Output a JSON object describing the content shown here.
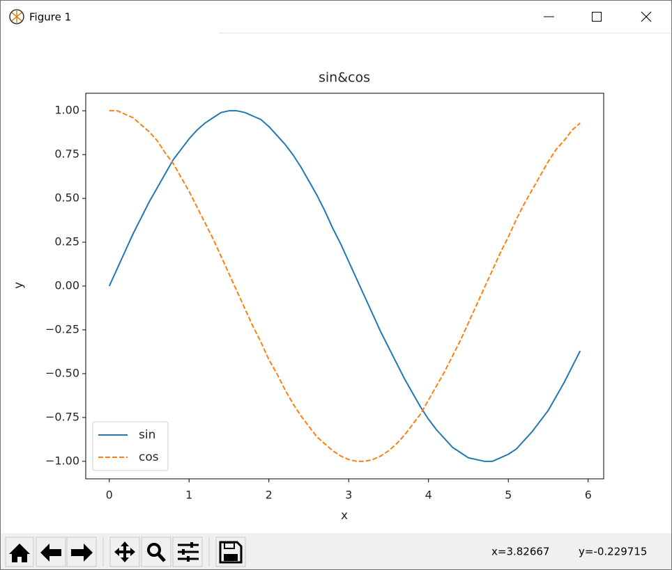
{
  "window": {
    "title": "Figure 1"
  },
  "chart_data": {
    "type": "line",
    "title": "sin&cos",
    "x_label": "x",
    "y_label": "y",
    "x": [
      0,
      0.1,
      0.2,
      0.3,
      0.4,
      0.5,
      0.6,
      0.7,
      0.8,
      0.9,
      1,
      1.1,
      1.2,
      1.3,
      1.4,
      1.5,
      1.6,
      1.7,
      1.8,
      1.9,
      2,
      2.1,
      2.2,
      2.3,
      2.4,
      2.5,
      2.6,
      2.7,
      2.8,
      2.9,
      3,
      3.1,
      3.2,
      3.3,
      3.4,
      3.5,
      3.6,
      3.7,
      3.8,
      3.9,
      4,
      4.1,
      4.2,
      4.3,
      4.4,
      4.5,
      4.6,
      4.7,
      4.8,
      4.9,
      5,
      5.1,
      5.2,
      5.3,
      5.4,
      5.5,
      5.6,
      5.7,
      5.8,
      5.9
    ],
    "series": [
      {
        "name": "sin",
        "color": "#1f77b4",
        "linestyle": "solid",
        "values": [
          0,
          0.1,
          0.2,
          0.3,
          0.39,
          0.48,
          0.56,
          0.64,
          0.72,
          0.78,
          0.84,
          0.89,
          0.93,
          0.96,
          0.99,
          1,
          1,
          0.99,
          0.97,
          0.95,
          0.91,
          0.86,
          0.81,
          0.75,
          0.68,
          0.6,
          0.52,
          0.43,
          0.33,
          0.24,
          0.14,
          0.04,
          -0.06,
          -0.16,
          -0.26,
          -0.35,
          -0.44,
          -0.53,
          -0.61,
          -0.69,
          -0.76,
          -0.82,
          -0.87,
          -0.92,
          -0.95,
          -0.98,
          -0.99,
          -1,
          -1,
          -0.98,
          -0.96,
          -0.93,
          -0.88,
          -0.83,
          -0.77,
          -0.71,
          -0.63,
          -0.55,
          -0.46,
          -0.37
        ]
      },
      {
        "name": "cos",
        "color": "#ff7f0e",
        "linestyle": "dashed",
        "values": [
          1,
          1,
          0.98,
          0.96,
          0.92,
          0.88,
          0.83,
          0.76,
          0.7,
          0.62,
          0.54,
          0.45,
          0.36,
          0.27,
          0.17,
          0.07,
          -0.03,
          -0.13,
          -0.23,
          -0.32,
          -0.42,
          -0.5,
          -0.59,
          -0.67,
          -0.74,
          -0.8,
          -0.86,
          -0.9,
          -0.94,
          -0.97,
          -0.99,
          -1,
          -1,
          -0.99,
          -0.97,
          -0.94,
          -0.9,
          -0.85,
          -0.79,
          -0.73,
          -0.65,
          -0.57,
          -0.49,
          -0.4,
          -0.31,
          -0.21,
          -0.11,
          -0.01,
          0.09,
          0.19,
          0.28,
          0.38,
          0.47,
          0.55,
          0.63,
          0.71,
          0.78,
          0.83,
          0.89,
          0.93
        ]
      }
    ],
    "xlim": [
      -0.295,
      6.195
    ],
    "ylim": [
      -1.1,
      1.1
    ],
    "xticks": [
      0,
      1,
      2,
      3,
      4,
      5,
      6
    ],
    "yticks": [
      {
        "value": 1,
        "label": "1.00"
      },
      {
        "value": 0.75,
        "label": "0.75"
      },
      {
        "value": 0.5,
        "label": "0.50"
      },
      {
        "value": 0.25,
        "label": "0.25"
      },
      {
        "value": 0,
        "label": "0.00"
      },
      {
        "value": -0.25,
        "label": "−0.25"
      },
      {
        "value": -0.5,
        "label": "−0.50"
      },
      {
        "value": -0.75,
        "label": "−0.75"
      },
      {
        "value": -1,
        "label": "−1.00"
      }
    ],
    "grid": false,
    "legend": "lower left"
  },
  "toolbar": {
    "x_status": "x=3.82667",
    "y_status": "y=-0.229715"
  }
}
